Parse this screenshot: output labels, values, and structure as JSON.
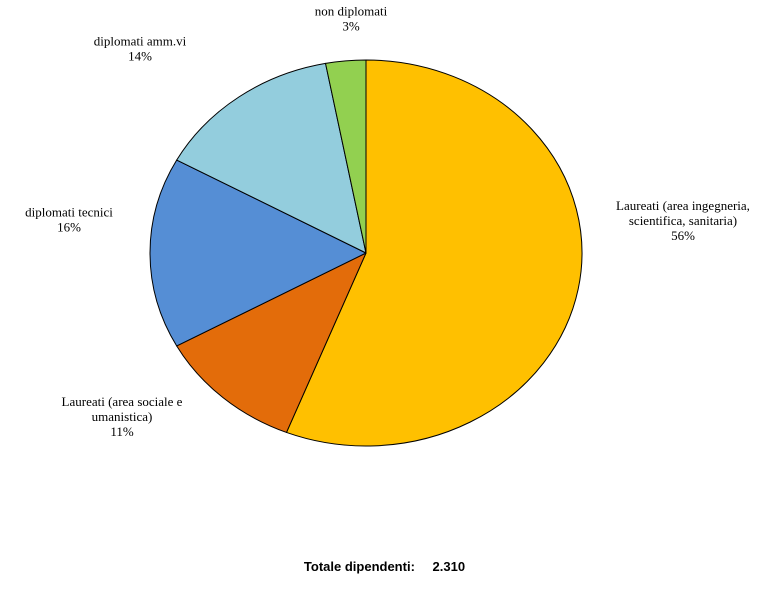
{
  "chart_data": {
    "type": "pie",
    "slices": [
      {
        "lines": [
          "Laureati (area ingegneria,",
          "scientifica, sanitaria)"
        ],
        "pct_label": "56%",
        "value": 56,
        "color": "#FFC000"
      },
      {
        "lines": [
          "Laureati (area sociale e",
          "umanistica)"
        ],
        "pct_label": "11%",
        "value": 11,
        "color": "#E36C0A"
      },
      {
        "lines": [
          "diplomati tecnici"
        ],
        "pct_label": "16%",
        "value": 16,
        "color": "#558ED5"
      },
      {
        "lines": [
          "diplomati amm.vi"
        ],
        "pct_label": "14%",
        "value": 14,
        "color": "#93CDDD"
      },
      {
        "lines": [
          "non diplomati"
        ],
        "pct_label": "3%",
        "value": 3,
        "color": "#92D050"
      }
    ],
    "start_angle_deg": 0,
    "direction": "clockwise",
    "legend": "none"
  },
  "footer": {
    "total_label": "Totale dipendenti:",
    "total_value": "2.310"
  }
}
